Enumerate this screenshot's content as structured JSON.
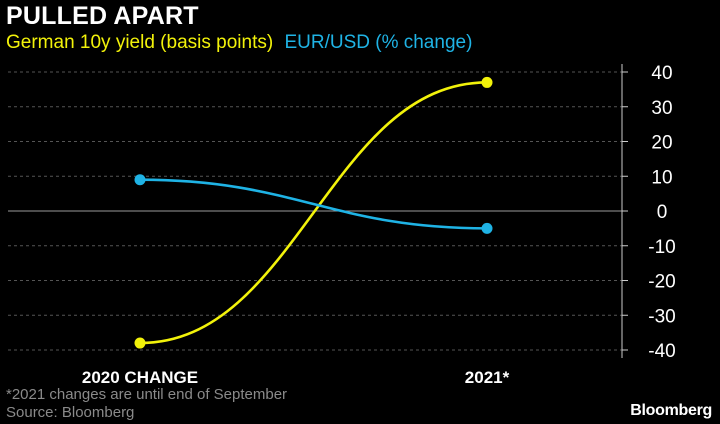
{
  "header": {
    "title": "PULLED APART",
    "subtitle_series_1": "German 10y yield (basis points)",
    "subtitle_series_2": "EUR/USD (% change)"
  },
  "footer": {
    "footnote": "*2021 changes are until end of September",
    "source": "Source: Bloomberg",
    "brand": "Bloomberg"
  },
  "colors": {
    "background": "#000000",
    "series_1": "#f2f20a",
    "series_2": "#1fb3e5",
    "grid": "#555555",
    "text": "#ffffff"
  },
  "chart_data": {
    "type": "line",
    "title": "PULLED APART",
    "categories": [
      "2020 CHANGE",
      "2021*"
    ],
    "series": [
      {
        "name": "German 10y yield (basis points)",
        "color": "#f2f20a",
        "values": [
          -38,
          37
        ]
      },
      {
        "name": "EUR/USD (% change)",
        "color": "#1fb3e5",
        "values": [
          9,
          -5
        ]
      }
    ],
    "y_axis": {
      "position": "right",
      "range": [
        -40,
        40
      ],
      "ticks": [
        40,
        30,
        20,
        10,
        0,
        -10,
        -20,
        -30,
        -40
      ],
      "tick_labels": [
        "40",
        "30",
        "20",
        "10",
        "0",
        "-10",
        "-20",
        "-30",
        "-40"
      ]
    },
    "grid": "horizontal dashed",
    "legend": "subtitle"
  }
}
